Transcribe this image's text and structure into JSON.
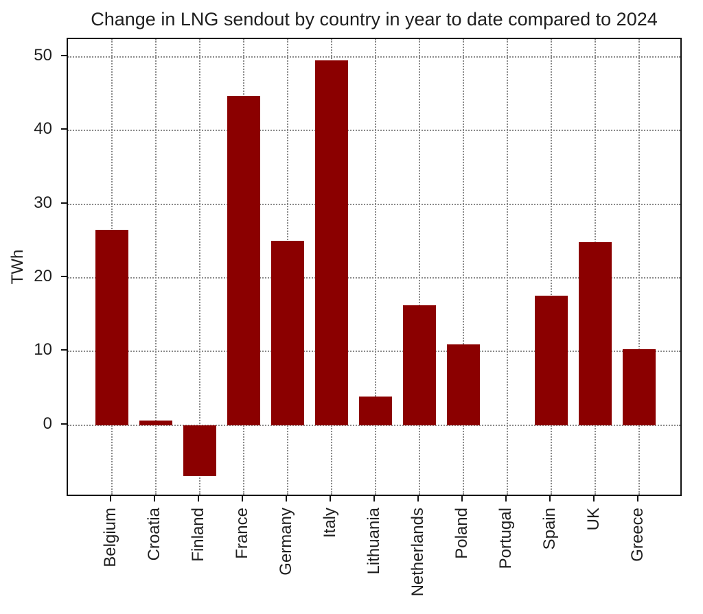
{
  "chart_data": {
    "type": "bar",
    "title": "Change in LNG sendout by country in year to date compared to 2024",
    "xlabel": "",
    "ylabel": "TWh",
    "categories": [
      "Belgium",
      "Croatia",
      "Finland",
      "France",
      "Germany",
      "Italy",
      "Lithuania",
      "Netherlands",
      "Poland",
      "Portugal",
      "Spain",
      "UK",
      "Greece"
    ],
    "values": [
      26.5,
      0.6,
      -6.9,
      44.7,
      25.0,
      49.5,
      3.9,
      16.3,
      11.0,
      0.0,
      17.6,
      24.8,
      10.3
    ],
    "yticks": [
      0,
      10,
      20,
      30,
      40,
      50
    ],
    "ylim": [
      -9.8,
      52.4
    ],
    "grid": true,
    "grid_style": "dotted",
    "x_tick_label_rotation": 90,
    "legend": null,
    "bar_color": "#8B0000",
    "grid_color": "#8a8a8a",
    "axis_color": "#111111",
    "text_color": "#1f1f1f",
    "background_color": "#ffffff"
  }
}
